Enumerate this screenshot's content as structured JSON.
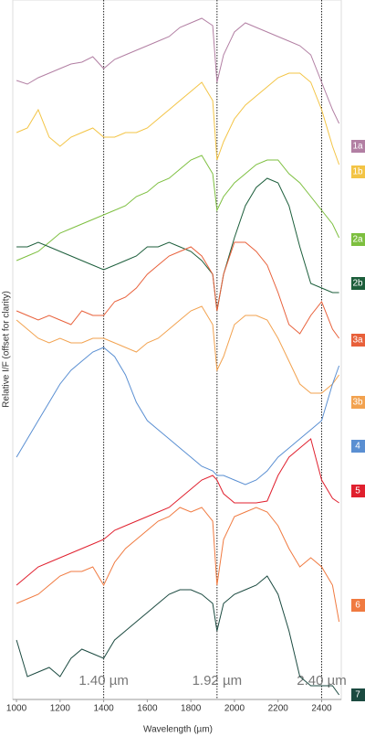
{
  "chart_data": {
    "type": "line",
    "y_label": "Relative I/F (offset for clarity)",
    "x_label": "Wavelength (µm)",
    "xlim": [
      983,
      2490
    ],
    "xticks": [
      1000,
      1200,
      1400,
      1600,
      1800,
      2000,
      2200,
      2400
    ],
    "ylim": [
      0,
      765
    ],
    "x": [
      1000,
      1050,
      1100,
      1150,
      1200,
      1250,
      1300,
      1350,
      1400,
      1450,
      1500,
      1550,
      1600,
      1650,
      1700,
      1750,
      1800,
      1850,
      1900,
      1920,
      1950,
      2000,
      2050,
      2100,
      2150,
      2200,
      2250,
      2300,
      2350,
      2400,
      2450,
      2480
    ],
    "series": [
      {
        "name": "1a",
        "color": "#b27fa3",
        "values": [
          677,
          673,
          680,
          685,
          690,
          695,
          697,
          703,
          690,
          700,
          705,
          710,
          715,
          720,
          725,
          735,
          740,
          745,
          737,
          675,
          705,
          730,
          740,
          735,
          730,
          725,
          720,
          715,
          705,
          675,
          645,
          630
        ]
      },
      {
        "name": "1b",
        "color": "#f3c445",
        "values": [
          620,
          625,
          645,
          615,
          605,
          615,
          620,
          625,
          615,
          615,
          620,
          620,
          625,
          635,
          645,
          655,
          665,
          675,
          655,
          590,
          610,
          635,
          650,
          660,
          670,
          680,
          685,
          685,
          675,
          645,
          605,
          585
        ]
      },
      {
        "name": "2a",
        "color": "#7dbf3f",
        "values": [
          480,
          485,
          490,
          500,
          510,
          515,
          520,
          525,
          530,
          535,
          540,
          550,
          555,
          565,
          570,
          580,
          590,
          595,
          575,
          535,
          550,
          565,
          575,
          585,
          590,
          590,
          575,
          565,
          550,
          535,
          520,
          505
        ]
      },
      {
        "name": "2b",
        "color": "#1c5e3b",
        "values": [
          495,
          495,
          500,
          495,
          490,
          485,
          480,
          475,
          470,
          475,
          480,
          485,
          495,
          495,
          500,
          495,
          490,
          480,
          465,
          425,
          465,
          505,
          540,
          560,
          570,
          565,
          540,
          495,
          455,
          450,
          445,
          445
        ]
      },
      {
        "name": "3a",
        "color": "#e8603a",
        "values": [
          425,
          420,
          415,
          420,
          415,
          410,
          425,
          420,
          420,
          435,
          440,
          450,
          465,
          475,
          485,
          490,
          495,
          485,
          465,
          425,
          465,
          500,
          500,
          490,
          475,
          445,
          410,
          400,
          420,
          435,
          405,
          395
        ]
      },
      {
        "name": "3b",
        "color": "#f2a24f",
        "values": [
          415,
          405,
          395,
          390,
          395,
          390,
          390,
          395,
          395,
          390,
          385,
          380,
          390,
          395,
          405,
          415,
          425,
          430,
          410,
          360,
          375,
          410,
          420,
          420,
          415,
          395,
          370,
          345,
          335,
          335,
          345,
          355
        ]
      },
      {
        "name": "4",
        "color": "#5a8fd2",
        "values": [
          265,
          285,
          305,
          325,
          345,
          360,
          370,
          380,
          385,
          375,
          355,
          325,
          305,
          295,
          285,
          275,
          265,
          255,
          250,
          245,
          245,
          240,
          235,
          240,
          250,
          265,
          275,
          285,
          295,
          305,
          345,
          365
        ]
      },
      {
        "name": "5",
        "color": "#e0202e",
        "values": [
          125,
          135,
          145,
          150,
          155,
          160,
          165,
          170,
          175,
          185,
          190,
          195,
          200,
          205,
          210,
          220,
          230,
          240,
          245,
          240,
          225,
          215,
          215,
          215,
          217,
          245,
          265,
          275,
          285,
          240,
          220,
          215
        ]
      },
      {
        "name": "6",
        "color": "#f07a40",
        "values": [
          105,
          110,
          115,
          125,
          135,
          140,
          140,
          145,
          125,
          150,
          165,
          175,
          185,
          195,
          200,
          210,
          205,
          210,
          195,
          125,
          175,
          200,
          205,
          210,
          205,
          190,
          165,
          145,
          155,
          145,
          125,
          85
        ]
      },
      {
        "name": "7",
        "color": "#1b4a40",
        "values": [
          65,
          25,
          30,
          35,
          25,
          45,
          55,
          50,
          45,
          65,
          75,
          85,
          95,
          105,
          115,
          120,
          120,
          115,
          105,
          75,
          105,
          115,
          120,
          125,
          135,
          115,
          75,
          25,
          15,
          15,
          15,
          5
        ]
      }
    ],
    "annotations": [
      {
        "x": 1400,
        "label": "1.40 µm"
      },
      {
        "x": 1920,
        "label": "1.92 µm"
      },
      {
        "x": 2400,
        "label": "2.40 µm"
      }
    ]
  }
}
